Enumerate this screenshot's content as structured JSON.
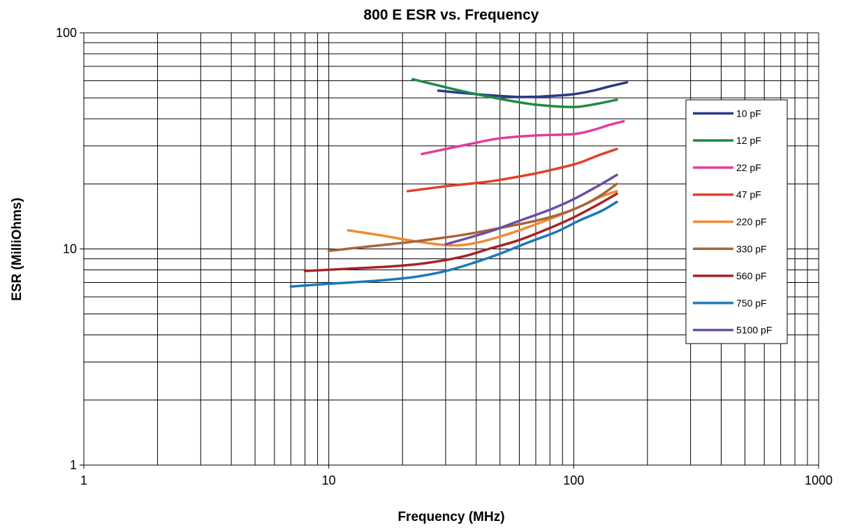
{
  "chart_data": {
    "type": "line",
    "title": "800 E ESR vs. Frequency",
    "xlabel": "Frequency (MHz)",
    "ylabel": "ESR (MilliOhms)",
    "x_scale": "log",
    "y_scale": "log",
    "xlim": [
      1,
      1000
    ],
    "ylim": [
      1,
      100
    ],
    "x_ticks": [
      "1",
      "10",
      "100",
      "1000"
    ],
    "y_ticks": [
      "1",
      "10",
      "100"
    ],
    "grid": true,
    "legend_position": "right",
    "series": [
      {
        "name": "10 pF",
        "color": "#2a3a8c",
        "points": [
          [
            28,
            54
          ],
          [
            40,
            52
          ],
          [
            60,
            50.5
          ],
          [
            80,
            51
          ],
          [
            100,
            52
          ],
          [
            120,
            54
          ],
          [
            140,
            56.5
          ],
          [
            165,
            59
          ]
        ]
      },
      {
        "name": "12 pF",
        "color": "#1f8a45",
        "points": [
          [
            22,
            61
          ],
          [
            30,
            56
          ],
          [
            40,
            52
          ],
          [
            55,
            48.5
          ],
          [
            70,
            46.5
          ],
          [
            90,
            45.5
          ],
          [
            105,
            45.5
          ],
          [
            125,
            47
          ],
          [
            150,
            49
          ]
        ]
      },
      {
        "name": "22 pF",
        "color": "#e23d9c",
        "points": [
          [
            24,
            27.5
          ],
          [
            30,
            29
          ],
          [
            40,
            31
          ],
          [
            50,
            32.5
          ],
          [
            70,
            33.5
          ],
          [
            100,
            34
          ],
          [
            120,
            35.5
          ],
          [
            140,
            37.5
          ],
          [
            160,
            39
          ]
        ]
      },
      {
        "name": "47 pF",
        "color": "#e2402a",
        "points": [
          [
            21,
            18.5
          ],
          [
            30,
            19.5
          ],
          [
            45,
            20.5
          ],
          [
            65,
            22
          ],
          [
            85,
            23.5
          ],
          [
            105,
            25
          ],
          [
            125,
            27
          ],
          [
            150,
            29
          ]
        ]
      },
      {
        "name": "220 pF",
        "color": "#f08a30",
        "points": [
          [
            12,
            12.2
          ],
          [
            16,
            11.6
          ],
          [
            22,
            10.9
          ],
          [
            28,
            10.5
          ],
          [
            34,
            10.4
          ],
          [
            42,
            10.8
          ],
          [
            55,
            11.8
          ],
          [
            70,
            13
          ],
          [
            90,
            14.5
          ],
          [
            110,
            16
          ],
          [
            130,
            17.5
          ],
          [
            150,
            18.5
          ]
        ]
      },
      {
        "name": "330 pF",
        "color": "#a6653a",
        "points": [
          [
            10,
            9.8
          ],
          [
            15,
            10.3
          ],
          [
            22,
            10.8
          ],
          [
            35,
            11.6
          ],
          [
            50,
            12.5
          ],
          [
            70,
            13.5
          ],
          [
            90,
            14.6
          ],
          [
            110,
            16
          ],
          [
            130,
            17.8
          ],
          [
            150,
            20
          ]
        ]
      },
      {
        "name": "560 pF",
        "color": "#a32428",
        "points": [
          [
            8,
            7.9
          ],
          [
            12,
            8.1
          ],
          [
            18,
            8.3
          ],
          [
            25,
            8.6
          ],
          [
            35,
            9.2
          ],
          [
            45,
            10
          ],
          [
            60,
            11
          ],
          [
            80,
            12.5
          ],
          [
            100,
            14
          ],
          [
            125,
            16
          ],
          [
            150,
            18
          ]
        ]
      },
      {
        "name": "750 pF",
        "color": "#1c78b8",
        "points": [
          [
            7,
            6.7
          ],
          [
            10,
            6.9
          ],
          [
            15,
            7.1
          ],
          [
            22,
            7.4
          ],
          [
            30,
            7.9
          ],
          [
            40,
            8.7
          ],
          [
            50,
            9.5
          ],
          [
            65,
            10.7
          ],
          [
            85,
            12
          ],
          [
            105,
            13.5
          ],
          [
            130,
            15
          ],
          [
            150,
            16.5
          ]
        ]
      },
      {
        "name": "5100 pF",
        "color": "#6a4ea6",
        "points": [
          [
            30,
            10.5
          ],
          [
            45,
            12
          ],
          [
            60,
            13.5
          ],
          [
            80,
            15.2
          ],
          [
            100,
            17
          ],
          [
            125,
            19.5
          ],
          [
            150,
            22
          ]
        ]
      }
    ]
  }
}
